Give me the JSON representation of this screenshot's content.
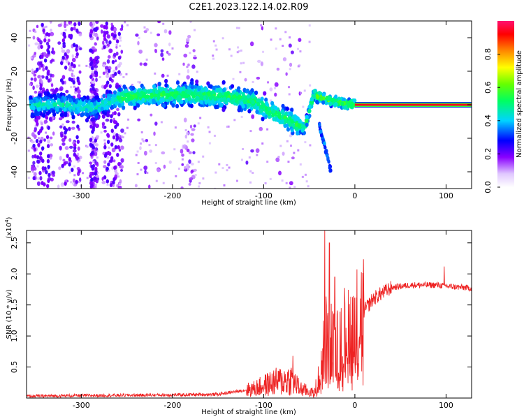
{
  "title": "C2E1.2023.122.14.02.R09",
  "colors": {
    "snr_line": "#ee2222",
    "background": "#ffffff",
    "axis": "#000000",
    "spectral_scatter": "#7a00ee"
  },
  "chart_data": [
    {
      "type": "heatmap",
      "name": "spectrogram",
      "xlabel": "Height of straight line (km)",
      "ylabel": "Frequency (Hz)",
      "xlim": [
        -360,
        128
      ],
      "ylim": [
        -50,
        50
      ],
      "xticks": [
        -300,
        -200,
        -100,
        0,
        100
      ],
      "yticks": [
        -40,
        -20,
        0,
        20,
        40
      ],
      "colorbar": {
        "label": "Normalized spectral amplitude",
        "range": [
          0,
          1
        ],
        "ticks": [
          "0.0",
          "0.2",
          "0.4",
          "0.6",
          "0.8"
        ]
      },
      "ridge": [
        {
          "x": -355,
          "y": 0
        },
        {
          "x": -320,
          "y": 0
        },
        {
          "x": -285,
          "y": -2
        },
        {
          "x": -260,
          "y": 4
        },
        {
          "x": -220,
          "y": 6
        },
        {
          "x": -180,
          "y": 6
        },
        {
          "x": -140,
          "y": 5
        },
        {
          "x": -110,
          "y": 2
        },
        {
          "x": -90,
          "y": -5
        },
        {
          "x": -70,
          "y": -10
        },
        {
          "x": -55,
          "y": -14
        },
        {
          "x": -45,
          "y": 6
        },
        {
          "x": -30,
          "y": 3
        },
        {
          "x": -15,
          "y": 1
        },
        {
          "x": 0,
          "y": 0
        },
        {
          "x": 128,
          "y": 0
        }
      ],
      "tone_line": {
        "x_start": 0,
        "x_end": 128,
        "frequency": 0
      }
    },
    {
      "type": "line",
      "name": "snr",
      "xlabel": "Height of straight line (km)",
      "ylabel": "SNR (10 * v/v)",
      "y_multiplier": "(x10^4)",
      "xlim": [
        -360,
        128
      ],
      "ylim": [
        0,
        2.7
      ],
      "xticks": [
        -300,
        -200,
        -100,
        0,
        100
      ],
      "yticks": [
        0.5,
        1.0,
        1.5,
        2.0,
        2.5
      ],
      "ytick_labels": [
        "0.5",
        "1.0",
        "1.5",
        "2.0",
        "2.5"
      ],
      "envelope": [
        {
          "x": -360,
          "y": 0.03
        },
        {
          "x": -300,
          "y": 0.04
        },
        {
          "x": -200,
          "y": 0.05
        },
        {
          "x": -150,
          "y": 0.06
        },
        {
          "x": -110,
          "y": 0.15
        },
        {
          "x": -90,
          "y": 0.25
        },
        {
          "x": -70,
          "y": 0.3
        },
        {
          "x": -60,
          "y": 0.15
        },
        {
          "x": -45,
          "y": 0.08
        },
        {
          "x": -38,
          "y": 0.4
        },
        {
          "x": -32,
          "y": 1.0
        },
        {
          "x": -20,
          "y": 0.8
        },
        {
          "x": -10,
          "y": 1.1
        },
        {
          "x": 0,
          "y": 1.2
        },
        {
          "x": 10,
          "y": 1.4
        },
        {
          "x": 20,
          "y": 1.6
        },
        {
          "x": 40,
          "y": 1.78
        },
        {
          "x": 60,
          "y": 1.82
        },
        {
          "x": 90,
          "y": 1.82
        },
        {
          "x": 110,
          "y": 1.79
        },
        {
          "x": 128,
          "y": 1.77
        }
      ],
      "peaks": [
        {
          "x": -33,
          "y": 2.7
        },
        {
          "x": -28,
          "y": 2.5
        },
        {
          "x": -22,
          "y": 1.95
        },
        {
          "x": -15,
          "y": 1.45
        },
        {
          "x": -68,
          "y": 0.68
        },
        {
          "x": 98,
          "y": 2.12
        }
      ]
    }
  ]
}
